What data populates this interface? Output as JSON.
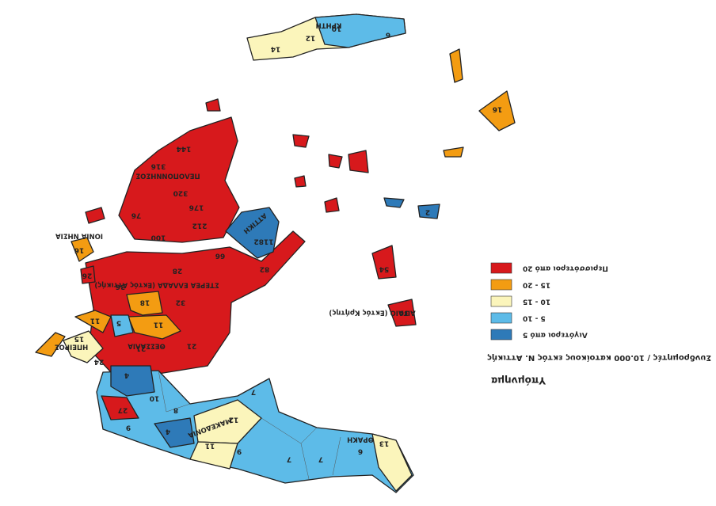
{
  "legend": {
    "title": "Υπόμνημα",
    "subtitle": "Συνδρομητές / 10.000 κατοίκους εκτός Ν. Αττικής",
    "items": [
      {
        "label": "Περισσότεροι από 20",
        "color": "#d7191c"
      },
      {
        "label": "15 - 20",
        "color": "#f39c12"
      },
      {
        "label": "10 - 15",
        "color": "#fbf5bb"
      },
      {
        "label": "5 - 10",
        "color": "#5dbbe8"
      },
      {
        "label": "Λιγότεροι από 5",
        "color": "#2e7ab8"
      }
    ]
  },
  "regions": [
    "ΚΡΗΤΗ",
    "ΠΕΛΟΠΟΝΝΗΣΟΣ",
    "ΑΤΤΙΚΗ",
    "ΙΟΝΙΑ ΝΗΣΙΑ",
    "ΣΤΕΡΕΑ ΕΛΛΑΔΑ (Εκτός Αττικής)",
    "ΘΕΣΣΑΛΙΑ",
    "ΗΠΕΙΡΟΣ",
    "ΜΑΚΕΔΟΝΙΑ",
    "ΘΡΑΚΗ",
    "ΑΙΓΑΙΟ (Εκτός Κρήτης)"
  ],
  "values": [
    14,
    12,
    10,
    6,
    16,
    144,
    316,
    320,
    176,
    76,
    212,
    100,
    1182,
    66,
    28,
    82,
    36,
    18,
    32,
    26,
    16,
    11,
    5,
    11,
    15,
    21,
    21,
    24,
    4,
    10,
    8,
    27,
    9,
    4,
    12,
    7,
    11,
    9,
    7,
    7,
    6,
    13,
    2,
    54,
    30
  ]
}
